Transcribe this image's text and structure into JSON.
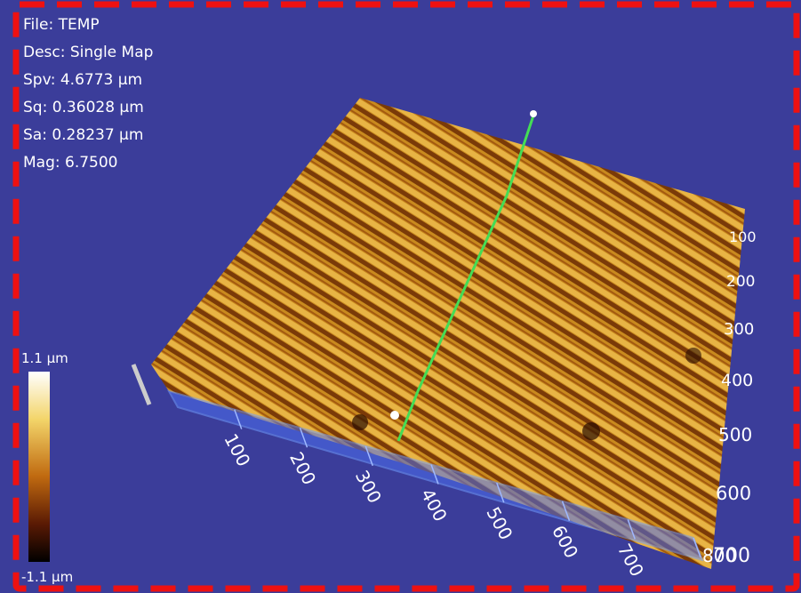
{
  "info": [
    "File: TEMP",
    "Desc: Single Map",
    "Spv: 4.6773 µm",
    "Sq: 0.36028 µm",
    "Sa: 0.28237 µm",
    "Mag: 6.7500"
  ],
  "colorbar": {
    "max_label": "1.1 µm",
    "min_label": "-1.1 µm"
  },
  "front_axis_labels": [
    100,
    200,
    300,
    400,
    500,
    600,
    700,
    800
  ],
  "side_axis_labels": [
    100,
    200,
    300,
    400,
    500,
    600,
    700
  ]
}
